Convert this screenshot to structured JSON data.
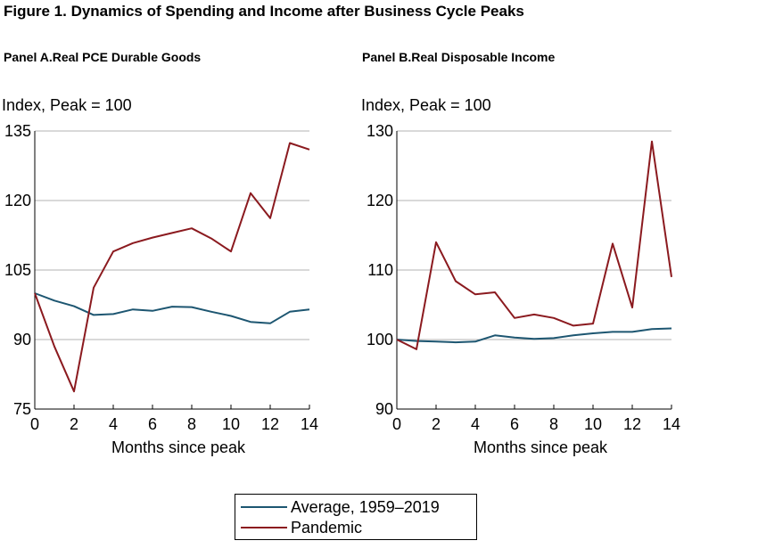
{
  "title": "Figure 1.   Dynamics of Spending and Income after Business Cycle Peaks",
  "colors": {
    "average": "#1d5671",
    "pandemic": "#8b1a1f",
    "grid": "#b3b3b3"
  },
  "legend": [
    {
      "label": "Average, 1959–2019",
      "color": "#1d5671"
    },
    {
      "label": "Pandemic",
      "color": "#8b1a1f"
    }
  ],
  "chart_data": [
    {
      "type": "line",
      "title": "Panel A.Real PCE Durable Goods",
      "ylabel": "Index, Peak = 100",
      "xlabel": "Months since peak",
      "ylim": [
        75,
        135
      ],
      "yticks": [
        75,
        90,
        105,
        120,
        135
      ],
      "xlim": [
        0,
        14
      ],
      "xticks": [
        0,
        2,
        4,
        6,
        8,
        10,
        12,
        14
      ],
      "grid": true,
      "x": [
        0,
        1,
        2,
        3,
        4,
        5,
        6,
        7,
        8,
        9,
        10,
        11,
        12,
        13,
        14
      ],
      "series": [
        {
          "name": "Average, 1959–2019",
          "values": [
            100.0,
            98.4,
            97.2,
            95.3,
            95.5,
            96.5,
            96.2,
            97.1,
            97.0,
            96.0,
            95.1,
            93.8,
            93.5,
            96.0,
            96.5
          ]
        },
        {
          "name": "Pandemic",
          "values": [
            100.0,
            88.5,
            78.8,
            101.2,
            109.0,
            110.8,
            112.0,
            113.0,
            114.0,
            111.8,
            109.0,
            121.6,
            116.2,
            132.4,
            131.0
          ]
        }
      ]
    },
    {
      "type": "line",
      "title": "Panel B.Real Disposable Income",
      "ylabel": "Index, Peak = 100",
      "xlabel": "Months since peak",
      "ylim": [
        90,
        130
      ],
      "yticks": [
        90,
        100,
        110,
        120,
        130
      ],
      "xlim": [
        0,
        14
      ],
      "xticks": [
        0,
        2,
        4,
        6,
        8,
        10,
        12,
        14
      ],
      "grid": true,
      "x": [
        0,
        1,
        2,
        3,
        4,
        5,
        6,
        7,
        8,
        9,
        10,
        11,
        12,
        13,
        14
      ],
      "series": [
        {
          "name": "Average, 1959–2019",
          "values": [
            100.0,
            99.8,
            99.7,
            99.6,
            99.7,
            100.6,
            100.3,
            100.1,
            100.2,
            100.6,
            100.9,
            101.1,
            101.1,
            101.5,
            101.6
          ]
        },
        {
          "name": "Pandemic",
          "values": [
            100.0,
            98.6,
            114.0,
            108.4,
            106.5,
            106.8,
            103.1,
            103.6,
            103.1,
            102.0,
            102.3,
            113.8,
            104.6,
            128.5,
            109.0
          ]
        }
      ]
    }
  ]
}
